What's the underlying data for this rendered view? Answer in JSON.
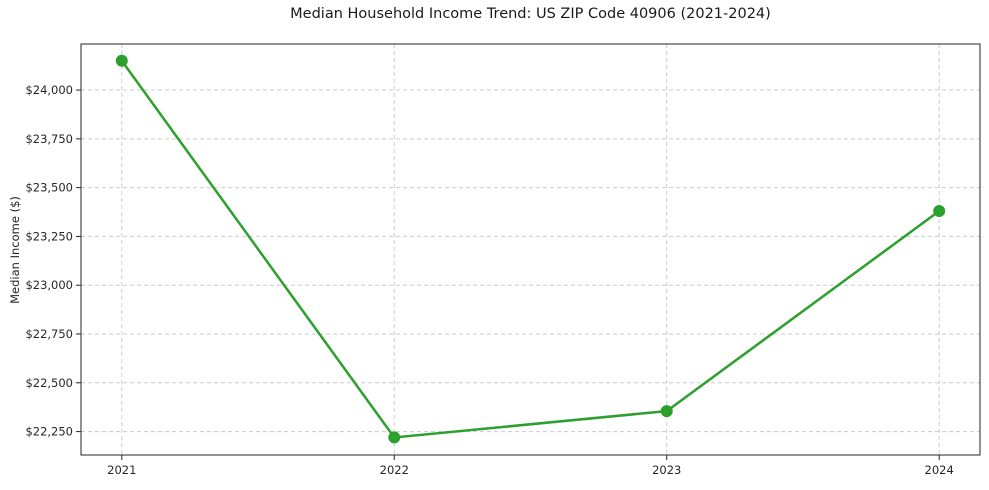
{
  "chart_data": {
    "type": "line",
    "title": "Median Household Income Trend: US ZIP Code 40906 (2021-2024)",
    "ylabel": "Median Income ($)",
    "xlabel": "",
    "x": [
      2021,
      2022,
      2023,
      2024
    ],
    "series": [
      {
        "name": "Median Household Income",
        "values": [
          24150,
          22220,
          22355,
          23380
        ]
      }
    ],
    "yticks": [
      22250,
      22500,
      22750,
      23000,
      23250,
      23500,
      23750,
      24000
    ],
    "ylim": [
      22130,
      24236
    ],
    "grid": true,
    "legend": "none",
    "line_color": "#2ca02c",
    "marker": "circle",
    "grid_color": "#cccccc",
    "axis_color": "#262626",
    "text_color": "#262626"
  }
}
